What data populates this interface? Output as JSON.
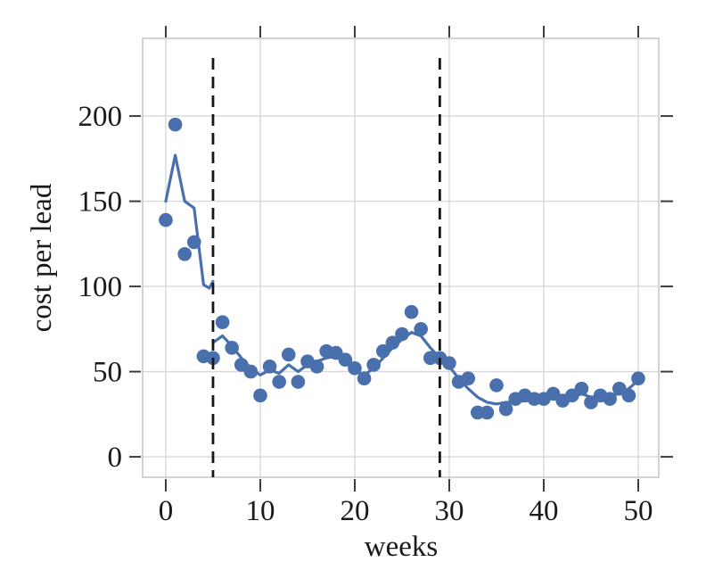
{
  "chart_data": {
    "type": "scatter",
    "title": "",
    "xlabel": "weeks",
    "ylabel": "cost per lead",
    "xlim": [
      -2.45,
      52.17
    ],
    "ylim": [
      -12,
      245.6
    ],
    "xticks": [
      0,
      10,
      20,
      30,
      40,
      50
    ],
    "yticks": [
      0,
      50,
      100,
      150,
      200
    ],
    "grid": true,
    "legend": "none",
    "series": [
      {
        "name": "cost-per-lead-observations",
        "type": "scatter",
        "color": "#4a6fad",
        "marker_radius_px": 7.8,
        "x": [
          0,
          1,
          2,
          3,
          4,
          5,
          6,
          7,
          8,
          9,
          10,
          11,
          12,
          13,
          14,
          15,
          16,
          17,
          18,
          19,
          20,
          21,
          22,
          23,
          24,
          25,
          26,
          27,
          28,
          29,
          30,
          31,
          32,
          33,
          34,
          35,
          36,
          37,
          38,
          39,
          40,
          41,
          42,
          43,
          44,
          45,
          46,
          47,
          48,
          49,
          50
        ],
        "y": [
          139,
          195,
          119,
          126,
          59,
          58,
          79,
          64,
          54,
          50,
          36,
          53,
          44,
          60,
          44,
          56,
          53,
          62,
          61,
          57,
          52,
          46,
          54,
          62,
          67,
          72,
          85,
          75,
          58,
          58,
          55,
          44,
          46,
          26,
          26,
          42,
          28,
          34,
          36,
          34,
          34,
          37,
          33,
          36,
          40,
          32,
          36,
          34,
          40,
          36,
          46
        ]
      },
      {
        "name": "trend-line-pre-period",
        "type": "line",
        "color": "#4a6fad",
        "x": [
          0,
          1,
          2,
          3,
          4,
          4.6,
          5
        ],
        "y": [
          150,
          177,
          150,
          146,
          101,
          99,
          103
        ]
      },
      {
        "name": "trend-line-post-period",
        "type": "line",
        "color": "#4a6fad",
        "x": [
          5,
          6,
          7,
          8,
          9,
          10,
          11,
          12,
          13,
          14,
          15,
          16,
          17,
          18,
          19,
          20,
          21,
          22,
          23,
          24,
          25,
          26,
          27,
          28,
          29,
          30,
          31,
          32,
          33,
          34,
          35,
          36,
          37,
          38,
          39,
          40,
          41,
          42,
          43,
          44,
          45,
          46,
          47,
          48,
          49,
          50
        ],
        "y": [
          67,
          71,
          65,
          58,
          52,
          48,
          51,
          49,
          54,
          50,
          54,
          56,
          58,
          59,
          57,
          51,
          48,
          52,
          58,
          64,
          69,
          73,
          71,
          64,
          58,
          53,
          46,
          40,
          35,
          32,
          31,
          32,
          32,
          33,
          33,
          34,
          35,
          34,
          35,
          37,
          35,
          35,
          36,
          37,
          40,
          45
        ]
      }
    ],
    "vlines": [
      {
        "x": 5,
        "style": "dashed",
        "color": "#161616"
      },
      {
        "x": 29,
        "style": "dashed",
        "color": "#161616"
      }
    ]
  },
  "style": {
    "background": "#ffffff",
    "grid_color": "#d8d8da",
    "border_color": "#c4c4ca",
    "tick_color": "#3c3c3c",
    "text_color": "#1a1a1a",
    "accent_blue": "#4a6fad"
  }
}
